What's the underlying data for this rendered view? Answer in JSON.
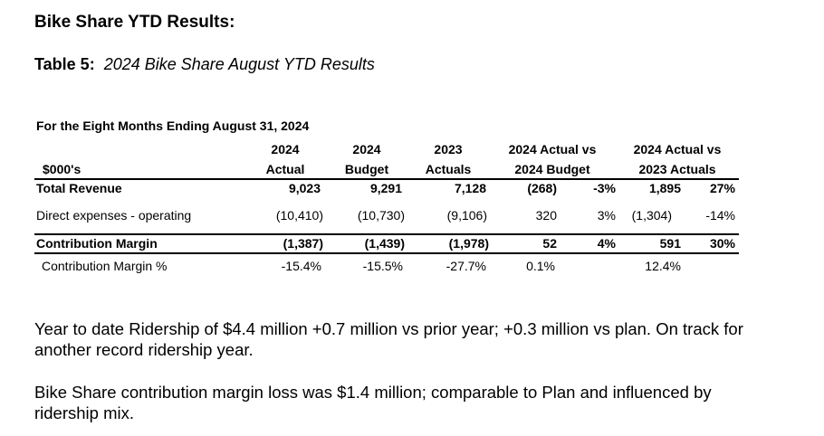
{
  "heading": "Bike Share YTD Results:",
  "table_caption": {
    "prefix": "Table 5:",
    "title": "2024 Bike Share August YTD Results"
  },
  "period": "For the Eight Months Ending August 31, 2024",
  "columns": {
    "unit_label": "$000's",
    "actual_2024": [
      "2024",
      "Actual"
    ],
    "budget_2024": [
      "2024",
      "Budget"
    ],
    "actuals_2023": [
      "2023",
      "Actuals"
    ],
    "vs_budget": [
      "2024 Actual vs",
      "2024 Budget"
    ],
    "vs_2023": [
      "2024 Actual vs",
      "2023 Actuals"
    ]
  },
  "rows": [
    {
      "label": "Total Revenue",
      "actual": "9,023",
      "budget": "9,291",
      "prior": "7,128",
      "var_budget": "(268)",
      "var_budget_pct": "-3%",
      "var_prior": "1,895",
      "var_prior_pct": "27%"
    },
    {
      "label": "Direct expenses - operating",
      "actual": "(10,410)",
      "budget": "(10,730)",
      "prior": "(9,106)",
      "var_budget": "320",
      "var_budget_pct": "3%",
      "var_prior": "(1,304)",
      "var_prior_pct": "-14%"
    },
    {
      "label": "Contribution Margin",
      "actual": "(1,387)",
      "budget": "(1,439)",
      "prior": "(1,978)",
      "var_budget": "52",
      "var_budget_pct": "4%",
      "var_prior": "591",
      "var_prior_pct": "30%"
    },
    {
      "label": "Contribution Margin %",
      "actual": "-15.4%",
      "budget": "-15.5%",
      "prior": "-27.7%",
      "var_budget": "0.1%",
      "var_prior": "12.4%"
    }
  ],
  "paragraphs": [
    "Year to date Ridership of $4.4 million +0.7 million vs prior year; +0.3 million vs plan. On track for another record ridership year.",
    "Bike Share contribution margin loss was $1.4 million; comparable to Plan and influenced by ridership mix."
  ]
}
